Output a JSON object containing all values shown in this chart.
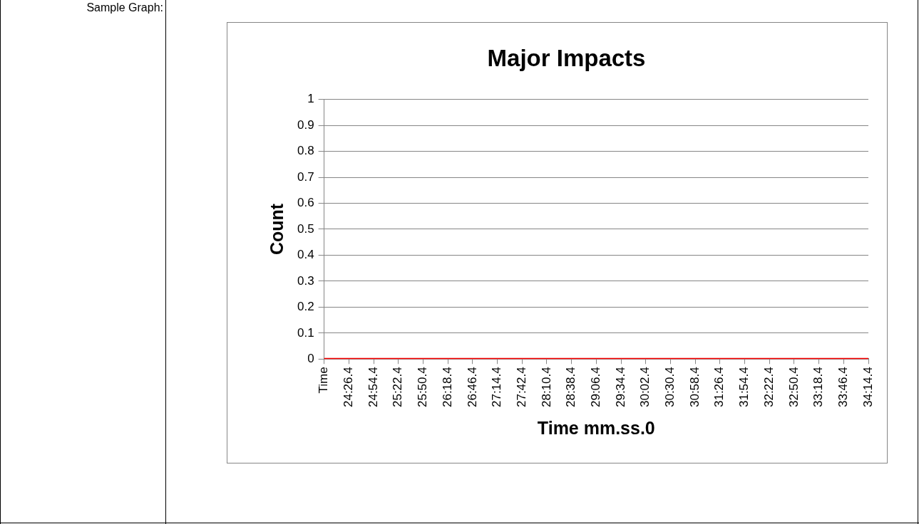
{
  "chart_data": {
    "type": "line",
    "title": "Major Impacts",
    "xlabel": "Time mm.ss.0",
    "ylabel": "Count",
    "annotations": [
      "Sample Graph:"
    ],
    "categories": [
      "Time",
      "24:26.4",
      "24:54.4",
      "25:22.4",
      "25:50.4",
      "26:18.4",
      "26:46.4",
      "27:14.4",
      "27:42.4",
      "28:10.4",
      "28:38.4",
      "29:06.4",
      "29:34.4",
      "30:02.4",
      "30:30.4",
      "30:58.4",
      "31:26.4",
      "31:54.4",
      "32:22.4",
      "32:50.4",
      "33:18.4",
      "33:46.4",
      "34:14.4"
    ],
    "series": [
      {
        "color": "#ff0000",
        "values": [
          0,
          0,
          0,
          0,
          0,
          0,
          0,
          0,
          0,
          0,
          0,
          0,
          0,
          0,
          0,
          0,
          0,
          0,
          0,
          0,
          0,
          0,
          0
        ]
      }
    ],
    "ylim": [
      0,
      1
    ],
    "yticks": [
      0,
      0.1,
      0.2,
      0.3,
      0.4,
      0.5,
      0.6,
      0.7,
      0.8,
      0.9,
      1
    ],
    "grid": "y",
    "legend": false,
    "marker": "none"
  }
}
